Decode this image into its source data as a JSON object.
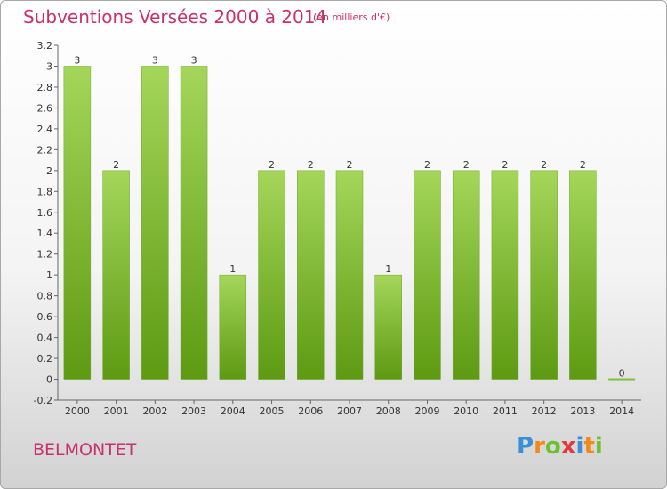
{
  "header": {
    "title": "Subventions Versées 2000 à 2014",
    "subtitle": "(en milliers d'€)"
  },
  "footer": {
    "commune": "BELMONTET",
    "logo_letters": [
      "P",
      "r",
      "o",
      "x",
      "i",
      "t",
      "i"
    ],
    "logo_colors": [
      "#3a8fd8",
      "#f08a1c",
      "#6fbf2f",
      "#e23a3a",
      "#3a8fd8",
      "#f08a1c",
      "#6fbf2f"
    ]
  },
  "chart_data": {
    "type": "bar",
    "categories": [
      "2000",
      "2001",
      "2002",
      "2003",
      "2004",
      "2005",
      "2006",
      "2007",
      "2008",
      "2009",
      "2010",
      "2011",
      "2012",
      "2013",
      "2014"
    ],
    "values": [
      3,
      2,
      3,
      3,
      1,
      2,
      2,
      2,
      1,
      2,
      2,
      2,
      2,
      2,
      0
    ],
    "data_labels": [
      "3",
      "2",
      "3",
      "3",
      "1",
      "2",
      "2",
      "2",
      "1",
      "2",
      "2",
      "2",
      "2",
      "2",
      "0"
    ],
    "y_ticks": [
      -0.2,
      0,
      0.2,
      0.4,
      0.6,
      0.8,
      1,
      1.2,
      1.4,
      1.6,
      1.8,
      2,
      2.2,
      2.4,
      2.6,
      2.8,
      3,
      3.2
    ],
    "y_tick_labels": [
      "-0.2",
      "0",
      "0.2",
      "0.4",
      "0.6",
      "0.8",
      "1",
      "1.2",
      "1.4",
      "1.6",
      "1.8",
      "2",
      "2.2",
      "2.4",
      "2.6",
      "2.8",
      "3",
      "3.2"
    ],
    "ylim": [
      -0.2,
      3.2
    ],
    "grid": false,
    "legend": "none",
    "colors": {
      "bar_top": "#a4d65a",
      "bar_bottom": "#5d9a12",
      "bar_edge": "#70a828",
      "zero_bar": "#7cc040"
    }
  }
}
